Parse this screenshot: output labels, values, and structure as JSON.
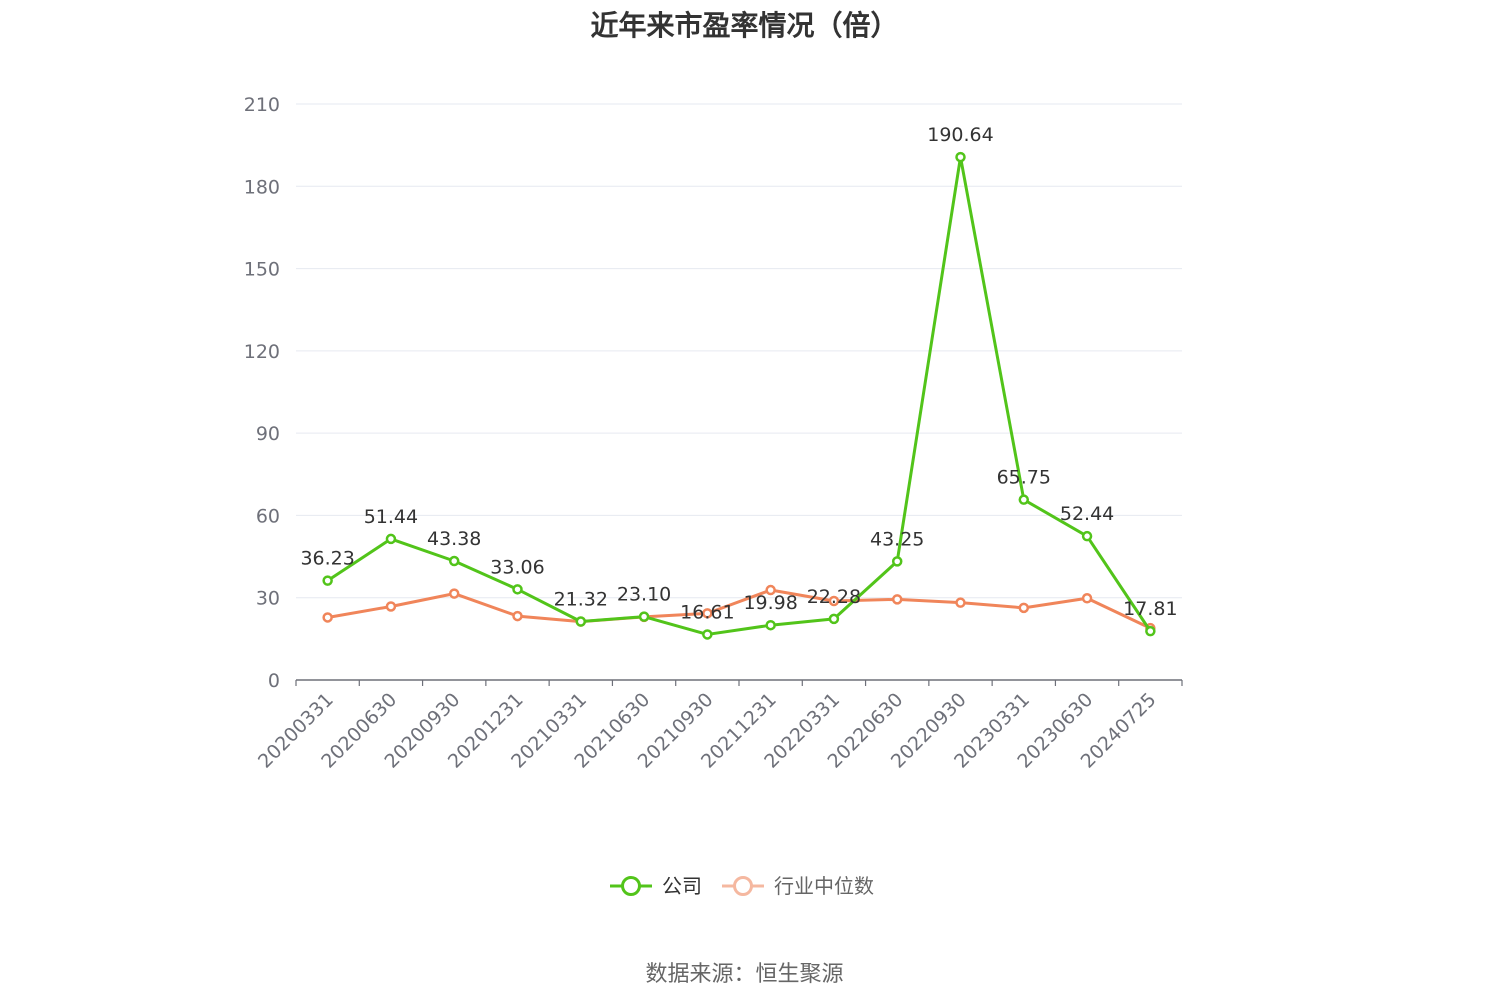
{
  "chart_data": {
    "type": "line",
    "title": "近年来市盈率情况（倍）",
    "xlabel": "",
    "ylabel": "",
    "categories": [
      "20200331",
      "20200630",
      "20200930",
      "20201231",
      "20210331",
      "20210630",
      "20210930",
      "20211231",
      "20220331",
      "20220630",
      "20220930",
      "20230331",
      "20230630",
      "20240725"
    ],
    "ylim": [
      0,
      210
    ],
    "yticks": [
      0,
      30,
      60,
      90,
      120,
      150,
      180,
      210
    ],
    "grid": true,
    "legend_position": "bottom",
    "series": [
      {
        "name": "公司",
        "color": "#52c41a",
        "show_labels": true,
        "values": [
          36.23,
          51.44,
          43.38,
          33.06,
          21.32,
          23.1,
          16.61,
          19.98,
          22.28,
          43.25,
          190.64,
          65.75,
          52.44,
          17.81
        ],
        "labels": [
          "36.23",
          "51.44",
          "43.38",
          "33.06",
          "21.32",
          "23.10",
          "16.61",
          "19.98",
          "22.28",
          "43.25",
          "190.64",
          "65.75",
          "52.44",
          "17.81"
        ]
      },
      {
        "name": "行业中位数",
        "color": "#f0855a",
        "legend_color": "#f5b8a0",
        "show_labels": false,
        "values": [
          22.8,
          26.8,
          31.5,
          23.3,
          21.3,
          23.0,
          24.3,
          32.8,
          28.8,
          29.4,
          28.2,
          26.3,
          29.8,
          18.9
        ]
      }
    ]
  },
  "footer": {
    "source": "数据来源：恒生聚源"
  }
}
